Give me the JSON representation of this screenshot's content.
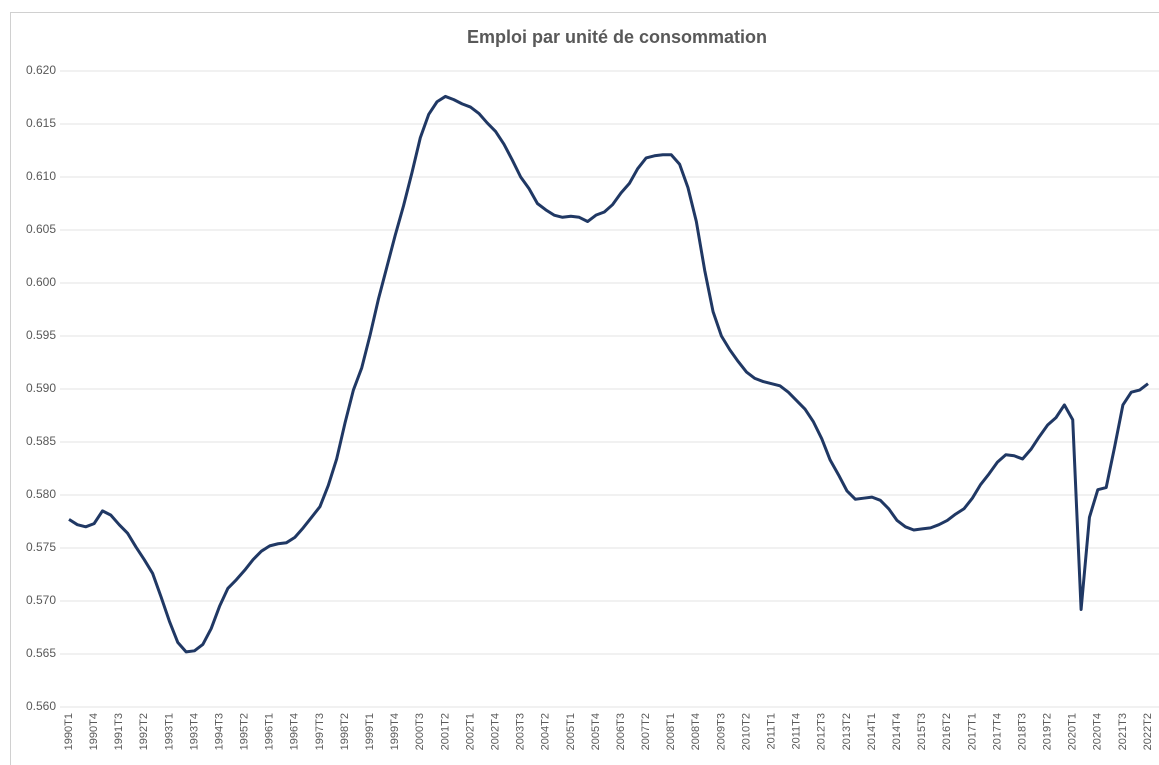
{
  "chart_data": {
    "type": "line",
    "title": "Emploi par unité de consommation",
    "categories": [
      "1990T1",
      null,
      null,
      "1990T4",
      null,
      null,
      "1991T3",
      null,
      null,
      "1992T2",
      null,
      null,
      "1993T1",
      null,
      null,
      "1993T4",
      null,
      null,
      "1994T3",
      null,
      null,
      "1995T2",
      null,
      null,
      "1996T1",
      null,
      null,
      "1996T4",
      null,
      null,
      "1997T3",
      null,
      null,
      "1998T2",
      null,
      null,
      "1999T1",
      null,
      null,
      "1999T4",
      null,
      null,
      "2000T3",
      null,
      null,
      "2001T2",
      null,
      null,
      "2002T1",
      null,
      null,
      "2002T4",
      null,
      null,
      "2003T3",
      null,
      null,
      "2004T2",
      null,
      null,
      "2005T1",
      null,
      null,
      "2005T4",
      null,
      null,
      "2006T3",
      null,
      null,
      "2007T2",
      null,
      null,
      "2008T1",
      null,
      null,
      "2008T4",
      null,
      null,
      "2009T3",
      null,
      null,
      "2010T2",
      null,
      null,
      "2011T1",
      null,
      null,
      "2011T4",
      null,
      null,
      "2012T3",
      null,
      null,
      "2013T2",
      null,
      null,
      "2014T1",
      null,
      null,
      "2014T4",
      null,
      null,
      "2015T3",
      null,
      null,
      "2016T2",
      null,
      null,
      "2017T1",
      null,
      null,
      "2017T4",
      null,
      null,
      "2018T3",
      null,
      null,
      "2019T2",
      null,
      null,
      "2020T1",
      null,
      null,
      "2020T4",
      null,
      null,
      "2021T3",
      null,
      null,
      "2022T2"
    ],
    "values": [
      0.5777,
      0.5772,
      0.577,
      0.5773,
      0.5785,
      0.5781,
      0.5772,
      0.5764,
      0.5751,
      0.5739,
      0.5726,
      0.5704,
      0.5681,
      0.5661,
      0.5652,
      0.5653,
      0.5659,
      0.5674,
      0.5695,
      0.5712,
      0.572,
      0.5729,
      0.5739,
      0.5747,
      0.5752,
      0.5754,
      0.5755,
      0.576,
      0.5769,
      0.5779,
      0.5789,
      0.5809,
      0.5834,
      0.5868,
      0.5899,
      0.592,
      0.5951,
      0.5985,
      0.6015,
      0.6045,
      0.6073,
      0.6104,
      0.6137,
      0.6159,
      0.6171,
      0.6176,
      0.6173,
      0.6169,
      0.6166,
      0.616,
      0.6151,
      0.6143,
      0.6131,
      0.6116,
      0.61,
      0.6089,
      0.6075,
      0.6069,
      0.6064,
      0.6062,
      0.6063,
      0.6062,
      0.6058,
      0.6064,
      0.6067,
      0.6074,
      0.6085,
      0.6094,
      0.6108,
      0.6118,
      0.612,
      0.6121,
      0.6121,
      0.6112,
      0.609,
      0.6058,
      0.6012,
      0.5973,
      0.595,
      0.5937,
      0.5926,
      0.5916,
      0.591,
      0.5907,
      0.5905,
      0.5903,
      0.5897,
      0.5889,
      0.5881,
      0.5869,
      0.5853,
      0.5833,
      0.5819,
      0.5804,
      0.5796,
      0.5797,
      0.5798,
      0.5795,
      0.5787,
      0.5776,
      0.577,
      0.5767,
      0.5768,
      0.5769,
      0.5772,
      0.5776,
      0.5782,
      0.5787,
      0.5797,
      0.581,
      0.582,
      0.5831,
      0.5838,
      0.5837,
      0.5834,
      0.5843,
      0.5855,
      0.5866,
      0.5873,
      0.5885,
      0.5871,
      0.5692,
      0.5779,
      0.5805,
      0.5807,
      0.5845,
      0.5885,
      0.5897,
      0.5899,
      0.5905
    ],
    "color": "#203864",
    "ylim": [
      0.56,
      0.62
    ],
    "yticks": [
      {
        "value": 0.56,
        "label": "0.560"
      },
      {
        "value": 0.565,
        "label": "0.565"
      },
      {
        "value": 0.57,
        "label": "0.570"
      },
      {
        "value": 0.575,
        "label": "0.575"
      },
      {
        "value": 0.58,
        "label": "0.580"
      },
      {
        "value": 0.585,
        "label": "0.585"
      },
      {
        "value": 0.59,
        "label": "0.590"
      },
      {
        "value": 0.595,
        "label": "0.595"
      },
      {
        "value": 0.6,
        "label": "0.600"
      },
      {
        "value": 0.605,
        "label": "0.605"
      },
      {
        "value": 0.61,
        "label": "0.610"
      },
      {
        "value": 0.615,
        "label": "0.615"
      },
      {
        "value": 0.62,
        "label": "0.620"
      }
    ],
    "grid": true
  }
}
